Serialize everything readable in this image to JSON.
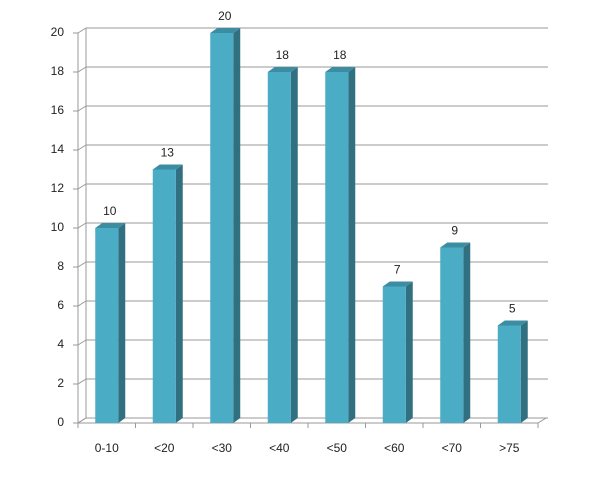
{
  "chart_data": {
    "type": "bar",
    "categories": [
      "0-10",
      "<20",
      "<30",
      "<40",
      "<50",
      "<60",
      "<70",
      ">75"
    ],
    "values": [
      10,
      13,
      20,
      18,
      18,
      7,
      9,
      5
    ],
    "color": "#4bacc6",
    "ylim": [
      0,
      20
    ],
    "yticks": [
      0,
      2,
      4,
      6,
      8,
      10,
      12,
      14,
      16,
      18,
      20
    ],
    "grid": true
  }
}
